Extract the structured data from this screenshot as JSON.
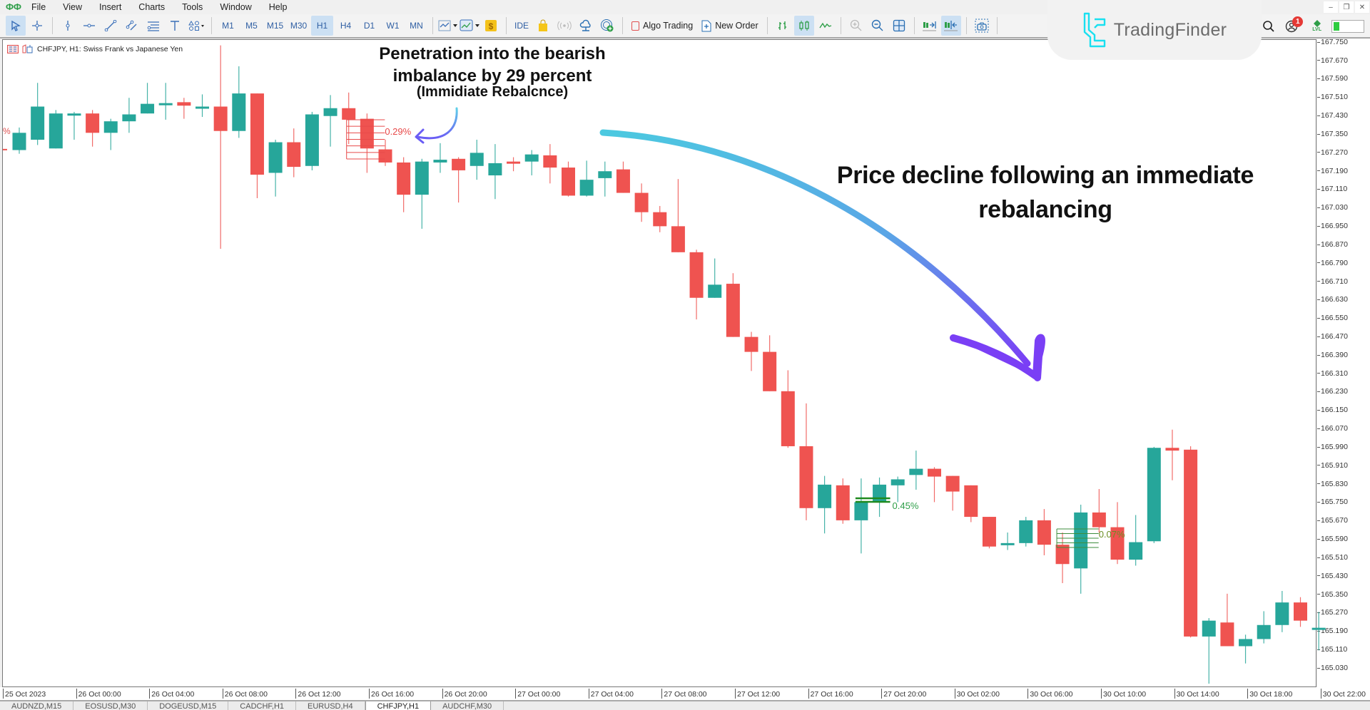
{
  "menubar": {
    "items": [
      "File",
      "View",
      "Insert",
      "Charts",
      "Tools",
      "Window",
      "Help"
    ]
  },
  "toolbar": {
    "timeframes": [
      "M1",
      "M5",
      "M15",
      "M30",
      "H1",
      "H4",
      "D1",
      "W1",
      "MN"
    ],
    "active_timeframe": "H1",
    "ide_label": "IDE",
    "algo_trading_label": "Algo Trading",
    "new_order_label": "New Order"
  },
  "branding": {
    "logo_text": "TradingFinder",
    "notification_count": "1",
    "level_label": "LVL"
  },
  "chart": {
    "title": "CHFJPY, H1:  Swiss Frank vs Japanese Yen",
    "bull_color": "#26a69a",
    "bear_color": "#ef5350",
    "imbalance_label_1": "0.29%",
    "imbalance_label_2": "0.45%",
    "imbalance_label_3": "0.07%",
    "left_edge_label": "%"
  },
  "annotations": {
    "penetration_line1": "Penetration into the bearish",
    "penetration_line2": "imbalance by 29 percent",
    "penetration_sub": "(Immidiate Rebalcnce)",
    "decline_line1": "Price decline following an immediate",
    "decline_line2": "rebalancing"
  },
  "tabs": [
    {
      "label": "AUDNZD,M15",
      "active": false
    },
    {
      "label": "EOSUSD,M30",
      "active": false
    },
    {
      "label": "DOGEUSD,M15",
      "active": false
    },
    {
      "label": "CADCHF,H1",
      "active": false
    },
    {
      "label": "EURUSD,H4",
      "active": false
    },
    {
      "label": "CHFJPY,H1",
      "active": true
    },
    {
      "label": "AUDCHF,M30",
      "active": false
    }
  ],
  "chart_data": {
    "type": "candlestick",
    "title": "CHFJPY, H1: Swiss Frank vs Japanese Yen",
    "xlabel": "",
    "ylabel": "",
    "ylim": [
      164.95,
      167.78
    ],
    "grid": false,
    "price_ticks": [
      "167.750",
      "167.670",
      "167.590",
      "167.510",
      "167.430",
      "167.350",
      "167.270",
      "167.190",
      "167.110",
      "167.030",
      "166.950",
      "166.870",
      "166.790",
      "166.710",
      "166.630",
      "166.550",
      "166.470",
      "166.390",
      "166.310",
      "166.230",
      "166.150",
      "166.070",
      "165.990",
      "165.910",
      "165.830",
      "165.750",
      "165.670",
      "165.590",
      "165.510",
      "165.430",
      "165.350",
      "165.270",
      "165.190",
      "165.110",
      "165.030"
    ],
    "time_ticks": [
      "25 Oct 2023",
      "26 Oct 00:00",
      "26 Oct 04:00",
      "26 Oct 08:00",
      "26 Oct 12:00",
      "26 Oct 16:00",
      "26 Oct 20:00",
      "27 Oct 00:00",
      "27 Oct 04:00",
      "27 Oct 08:00",
      "27 Oct 12:00",
      "27 Oct 16:00",
      "27 Oct 20:00",
      "30 Oct 02:00",
      "30 Oct 06:00",
      "30 Oct 10:00",
      "30 Oct 14:00",
      "30 Oct 18:00",
      "30 Oct 22:00"
    ],
    "candles": [
      [
        167.28,
        167.378,
        167.264,
        167.355
      ],
      [
        167.325,
        167.572,
        167.302,
        167.469
      ],
      [
        167.287,
        167.454,
        167.287,
        167.439
      ],
      [
        167.436,
        167.446,
        167.325,
        167.439
      ],
      [
        167.439,
        167.454,
        167.295,
        167.355
      ],
      [
        167.355,
        167.416,
        167.28,
        167.405
      ],
      [
        167.405,
        167.507,
        167.355,
        167.435
      ],
      [
        167.439,
        167.572,
        167.439,
        167.481
      ],
      [
        167.477,
        167.572,
        167.412,
        167.484
      ],
      [
        167.488,
        167.507,
        167.416,
        167.473
      ],
      [
        167.467,
        167.522,
        167.424,
        167.469
      ],
      [
        167.469,
        167.735,
        166.851,
        167.363
      ],
      [
        167.363,
        167.644,
        167.333,
        167.526
      ],
      [
        167.526,
        167.526,
        167.071,
        167.173
      ],
      [
        167.181,
        167.325,
        167.078,
        167.314
      ],
      [
        167.314,
        167.374,
        167.162,
        167.207
      ],
      [
        167.211,
        167.446,
        167.192,
        167.435
      ],
      [
        167.428,
        167.519,
        167.295,
        167.462
      ],
      [
        167.462,
        167.53,
        167.306,
        167.412
      ],
      [
        167.416,
        167.439,
        167.181,
        167.287
      ],
      [
        167.283,
        167.325,
        167.211,
        167.226
      ],
      [
        167.226,
        167.249,
        167.01,
        167.086
      ],
      [
        167.086,
        167.242,
        166.938,
        167.23
      ],
      [
        167.226,
        167.31,
        167.181,
        167.238
      ],
      [
        167.242,
        167.249,
        167.052,
        167.192
      ],
      [
        167.211,
        167.325,
        167.151,
        167.268
      ],
      [
        167.17,
        167.306,
        167.067,
        167.223
      ],
      [
        167.23,
        167.249,
        167.188,
        167.223
      ],
      [
        167.23,
        167.28,
        167.17,
        167.261
      ],
      [
        167.257,
        167.306,
        167.135,
        167.204
      ],
      [
        167.204,
        167.23,
        167.078,
        167.082
      ],
      [
        167.082,
        167.234,
        167.078,
        167.151
      ],
      [
        167.158,
        167.23,
        167.078,
        167.188
      ],
      [
        167.196,
        167.23,
        167.094,
        167.094
      ],
      [
        167.094,
        167.135,
        166.968,
        167.01
      ],
      [
        167.01,
        167.037,
        166.923,
        166.949
      ],
      [
        166.949,
        167.154,
        166.836,
        166.836
      ],
      [
        166.836,
        166.847,
        166.544,
        166.638
      ],
      [
        166.638,
        166.809,
        166.638,
        166.695
      ],
      [
        166.699,
        166.745,
        166.468,
        166.468
      ],
      [
        166.468,
        166.49,
        166.32,
        166.403
      ],
      [
        166.403,
        166.475,
        166.232,
        166.232
      ],
      [
        166.232,
        166.323,
        165.986,
        165.993
      ],
      [
        165.993,
        166.179,
        165.671,
        165.724
      ],
      [
        165.724,
        165.864,
        165.614,
        165.826
      ],
      [
        165.823,
        165.853,
        165.656,
        165.671
      ],
      [
        165.671,
        165.853,
        165.527,
        165.75
      ],
      [
        165.75,
        165.857,
        165.686,
        165.826
      ],
      [
        165.823,
        165.861,
        165.75,
        165.849
      ],
      [
        165.868,
        165.974,
        165.804,
        165.895
      ],
      [
        165.895,
        165.902,
        165.75,
        165.861
      ],
      [
        165.864,
        165.864,
        165.713,
        165.796
      ],
      [
        165.823,
        165.823,
        165.663,
        165.686
      ],
      [
        165.686,
        165.686,
        165.549,
        165.557
      ],
      [
        165.565,
        165.618,
        165.542,
        165.572
      ],
      [
        165.572,
        165.686,
        165.557,
        165.671
      ],
      [
        165.671,
        165.72,
        165.519,
        165.565
      ],
      [
        165.565,
        165.618,
        165.398,
        165.481
      ],
      [
        165.462,
        165.739,
        165.352,
        165.705
      ],
      [
        165.705,
        165.807,
        165.618,
        165.641
      ],
      [
        165.641,
        165.75,
        165.481,
        165.5
      ],
      [
        165.5,
        165.694,
        165.474,
        165.576
      ],
      [
        165.58,
        165.99,
        165.572,
        165.986
      ],
      [
        165.986,
        166.065,
        165.845,
        165.974
      ],
      [
        165.978,
        165.993,
        165.162,
        165.166
      ],
      [
        165.166,
        165.246,
        164.961,
        165.235
      ],
      [
        165.227,
        165.352,
        165.124,
        165.124
      ],
      [
        165.124,
        165.174,
        165.049,
        165.155
      ],
      [
        165.155,
        165.276,
        165.136,
        165.216
      ],
      [
        165.216,
        165.364,
        165.185,
        165.314
      ],
      [
        165.314,
        165.337,
        165.208,
        165.235
      ],
      [
        165.196,
        165.273,
        165.106,
        165.204
      ]
    ],
    "candle_format": [
      "open",
      "high",
      "low",
      "close"
    ],
    "imbalances": [
      {
        "label": "0.29%",
        "type": "bearish",
        "top": 167.412,
        "bottom": 167.287
      },
      {
        "label": "0.45%",
        "type": "bullish",
        "top": 165.75,
        "bottom": 165.735
      },
      {
        "label": "0.07%",
        "type": "bullish",
        "top": 165.641,
        "bottom": 165.565
      }
    ]
  }
}
